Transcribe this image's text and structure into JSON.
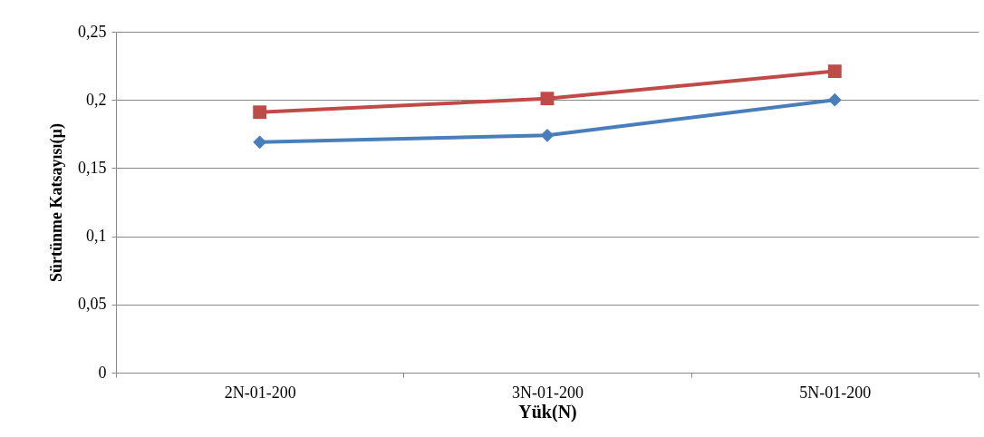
{
  "chart_data": {
    "type": "line",
    "xlabel": "Yük(N)",
    "ylabel": "Sürtünme Katsayısı(µ)",
    "categories": [
      "2N-01-200",
      "3N-01-200",
      "5N-01-200"
    ],
    "series": [
      {
        "color": "#4a7ebb",
        "marker": "diamond",
        "values": [
          0.169,
          0.174,
          0.2
        ]
      },
      {
        "color": "#be4b48",
        "marker": "square",
        "values": [
          0.191,
          0.201,
          0.221
        ]
      }
    ],
    "ylim": [
      0,
      0.25
    ],
    "yticks": [
      {
        "value": 0,
        "label": "0"
      },
      {
        "value": 0.05,
        "label": "0,05"
      },
      {
        "value": 0.1,
        "label": "0,1"
      },
      {
        "value": 0.15,
        "label": "0,15"
      },
      {
        "value": 0.2,
        "label": "0,2"
      },
      {
        "value": 0.25,
        "label": "0,25"
      }
    ],
    "grid": "y",
    "line_style": "solid"
  }
}
